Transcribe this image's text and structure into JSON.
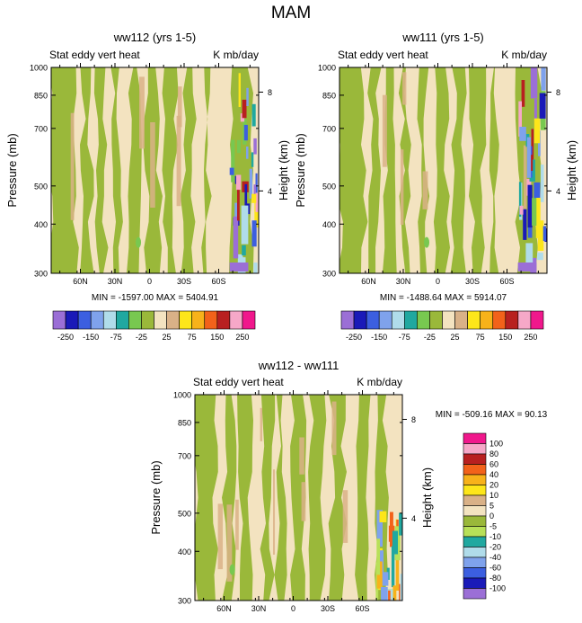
{
  "figure_title": "MAM",
  "chart_data": [
    {
      "type": "heatmap",
      "title": "ww112 (yrs 1-5)",
      "left_label": "Stat eddy vert heat",
      "right_label": "K mb/day",
      "ylabel": "Pressure (mb)",
      "ylabel_right": "Height (km)",
      "y_ticks": [
        "300",
        "400",
        "500",
        "700",
        "850",
        "1000"
      ],
      "y_ticks_right": [
        "8",
        "4"
      ],
      "x_ticks": [
        "60N",
        "30N",
        "0",
        "30S",
        "60S"
      ],
      "stats": "MIN = -1597.00   MAX = 5404.91",
      "colorbar_labels": [
        "-250",
        "-150",
        "-75",
        "-25",
        "25",
        "75",
        "150",
        "250"
      ]
    },
    {
      "type": "heatmap",
      "title": "ww111 (yrs 1-5)",
      "left_label": "Stat eddy vert heat",
      "right_label": "K mb/day",
      "ylabel": "Pressure (mb)",
      "ylabel_right": "Height (km)",
      "y_ticks": [
        "300",
        "400",
        "500",
        "700",
        "850",
        "1000"
      ],
      "y_ticks_right": [
        "8",
        "4"
      ],
      "x_ticks": [
        "60N",
        "30N",
        "0",
        "30S",
        "60S"
      ],
      "stats": "MIN = -1488.64   MAX = 5914.07",
      "colorbar_labels": [
        "-250",
        "-150",
        "-75",
        "-25",
        "25",
        "75",
        "150",
        "250"
      ]
    },
    {
      "type": "heatmap",
      "title": "ww112 - ww111",
      "left_label": "Stat eddy vert heat",
      "right_label": "K mb/day",
      "ylabel": "Pressure (mb)",
      "ylabel_right": "Height (km)",
      "y_ticks": [
        "300",
        "400",
        "500",
        "700",
        "850",
        "1000"
      ],
      "y_ticks_right": [
        "8",
        "4"
      ],
      "x_ticks": [
        "60N",
        "30N",
        "0",
        "30S",
        "60S"
      ],
      "stats": "MIN = -509.16   MAX =  90.13",
      "colorbar_labels": [
        "100",
        "80",
        "60",
        "40",
        "20",
        "10",
        "5",
        "0",
        "-5",
        "-10",
        "-20",
        "-40",
        "-60",
        "-80",
        "-100"
      ]
    }
  ],
  "colors": {
    "main_palette": [
      "#9b6fd6",
      "#1a1ab8",
      "#3c5fe0",
      "#7fa2ec",
      "#b0dcea",
      "#20a8a0",
      "#78c850",
      "#9ab83a",
      "#f3e3c0",
      "#d9b187",
      "#fde61a",
      "#f7b21a",
      "#f2621a",
      "#b82020",
      "#f6a8c8",
      "#f0188c"
    ],
    "diff_palette": [
      "#f0188c",
      "#f6a8c8",
      "#b82020",
      "#f2621a",
      "#f7b21a",
      "#fde61a",
      "#d9b187",
      "#f3e3c0",
      "#9ab83a",
      "#b8e058",
      "#20a8a0",
      "#b0dcea",
      "#7fa2ec",
      "#3c5fe0",
      "#1a1ab8",
      "#9b6fd6"
    ],
    "dominant_green": "#9ab83a",
    "dominant_tan": "#f3e3c0"
  }
}
